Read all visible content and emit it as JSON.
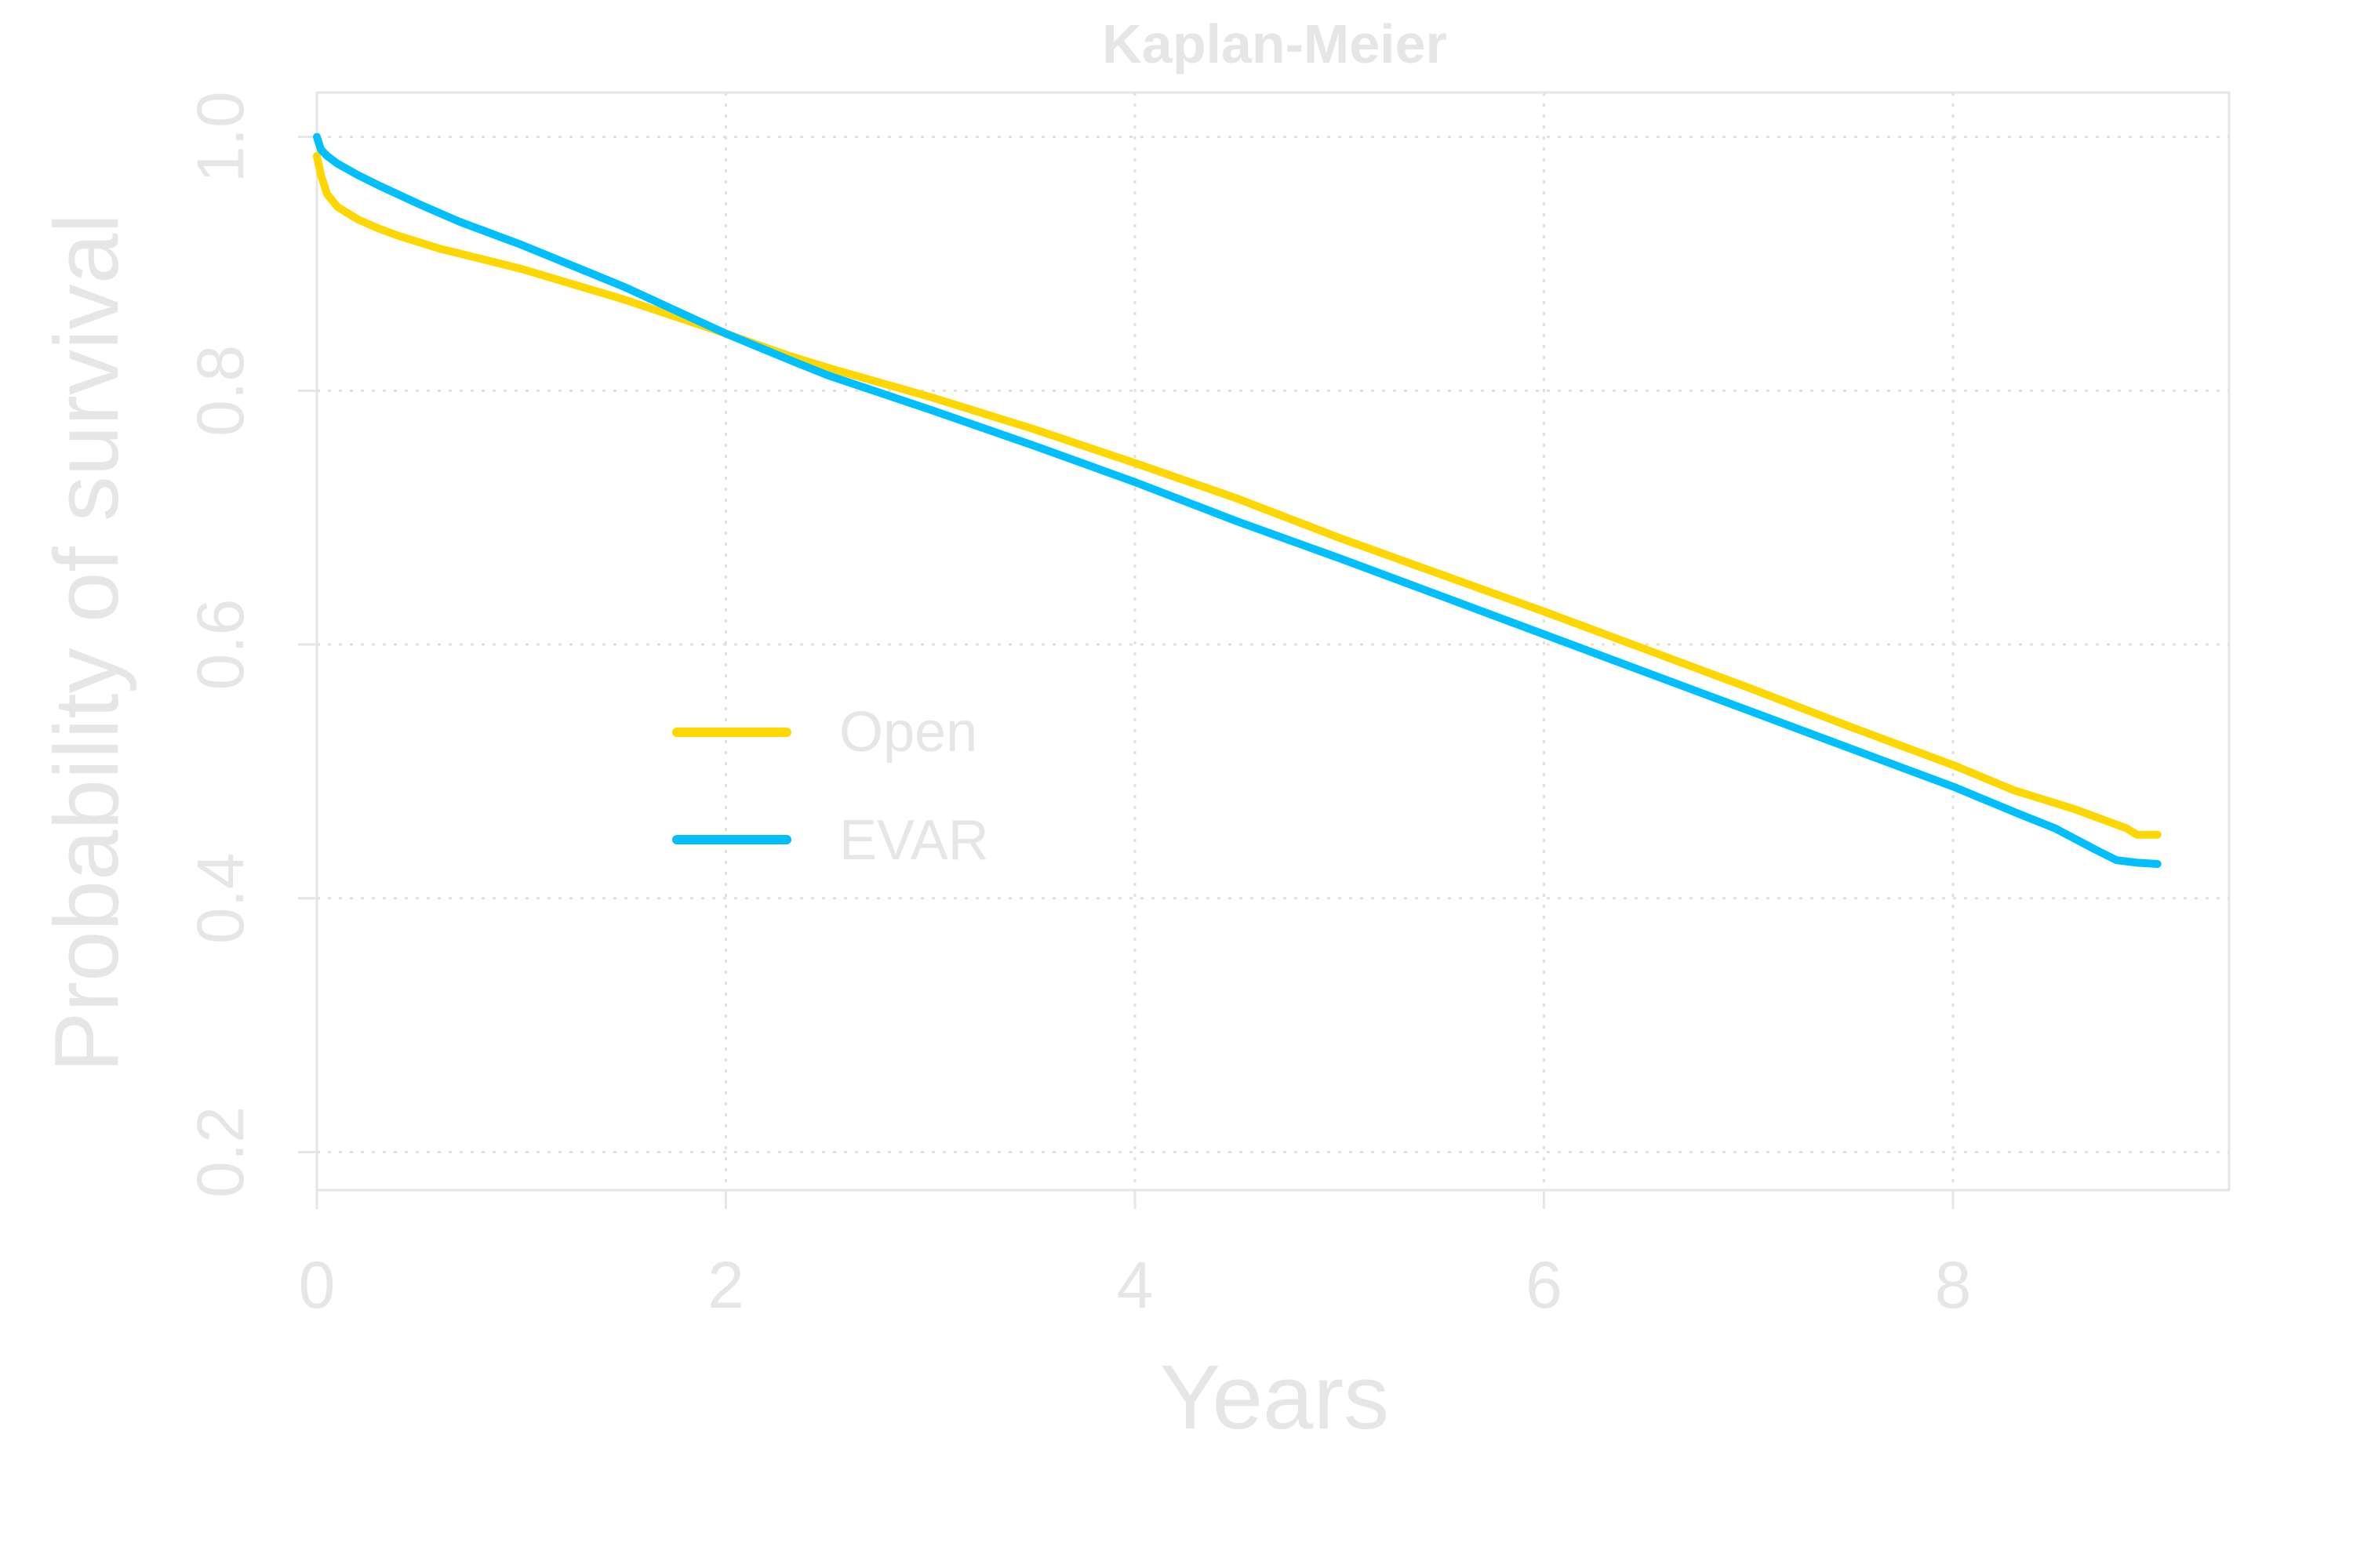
{
  "chart_data": {
    "type": "line",
    "title": "Kaplan-Meier",
    "xlabel": "Years",
    "ylabel": "Probability of survival",
    "xlim": [
      0,
      9.35
    ],
    "ylim": [
      0.17,
      1.035
    ],
    "xticks": [
      0,
      2,
      4,
      6,
      8
    ],
    "yticks": [
      0.2,
      0.4,
      0.6,
      0.8,
      1.0
    ],
    "xtick_labels": [
      "0",
      "2",
      "4",
      "6",
      "8"
    ],
    "ytick_labels": [
      "0.2",
      "0.4",
      "0.6",
      "0.8",
      "1.0"
    ],
    "grid": true,
    "legend_position": "center-left",
    "series": [
      {
        "name": "Open",
        "color": "#FFD700",
        "x": [
          0,
          0.02,
          0.05,
          0.1,
          0.15,
          0.2,
          0.3,
          0.4,
          0.5,
          0.6,
          0.8,
          1.0,
          1.5,
          2.0,
          2.3,
          2.5,
          3.0,
          3.5,
          4.0,
          4.5,
          5.0,
          5.5,
          6.0,
          6.5,
          7.0,
          7.5,
          8.0,
          8.3,
          8.6,
          8.85,
          8.9,
          9.0
        ],
        "y": [
          0.985,
          0.97,
          0.955,
          0.945,
          0.94,
          0.935,
          0.928,
          0.922,
          0.917,
          0.912,
          0.904,
          0.896,
          0.872,
          0.845,
          0.828,
          0.818,
          0.795,
          0.77,
          0.743,
          0.715,
          0.684,
          0.655,
          0.626,
          0.596,
          0.566,
          0.535,
          0.505,
          0.485,
          0.47,
          0.455,
          0.45,
          0.45
        ]
      },
      {
        "name": "EVAR",
        "color": "#00BFFF",
        "x": [
          0,
          0.02,
          0.05,
          0.1,
          0.2,
          0.3,
          0.5,
          0.7,
          1.0,
          1.5,
          2.0,
          2.3,
          2.5,
          3.0,
          3.5,
          4.0,
          4.5,
          5.0,
          5.5,
          6.0,
          6.5,
          7.0,
          7.5,
          8.0,
          8.3,
          8.5,
          8.7,
          8.8,
          8.9,
          9.0
        ],
        "y": [
          1.0,
          0.99,
          0.985,
          0.979,
          0.97,
          0.962,
          0.947,
          0.933,
          0.915,
          0.882,
          0.845,
          0.825,
          0.812,
          0.785,
          0.757,
          0.728,
          0.697,
          0.668,
          0.638,
          0.608,
          0.578,
          0.548,
          0.518,
          0.488,
          0.468,
          0.455,
          0.438,
          0.43,
          0.428,
          0.427
        ]
      }
    ]
  }
}
